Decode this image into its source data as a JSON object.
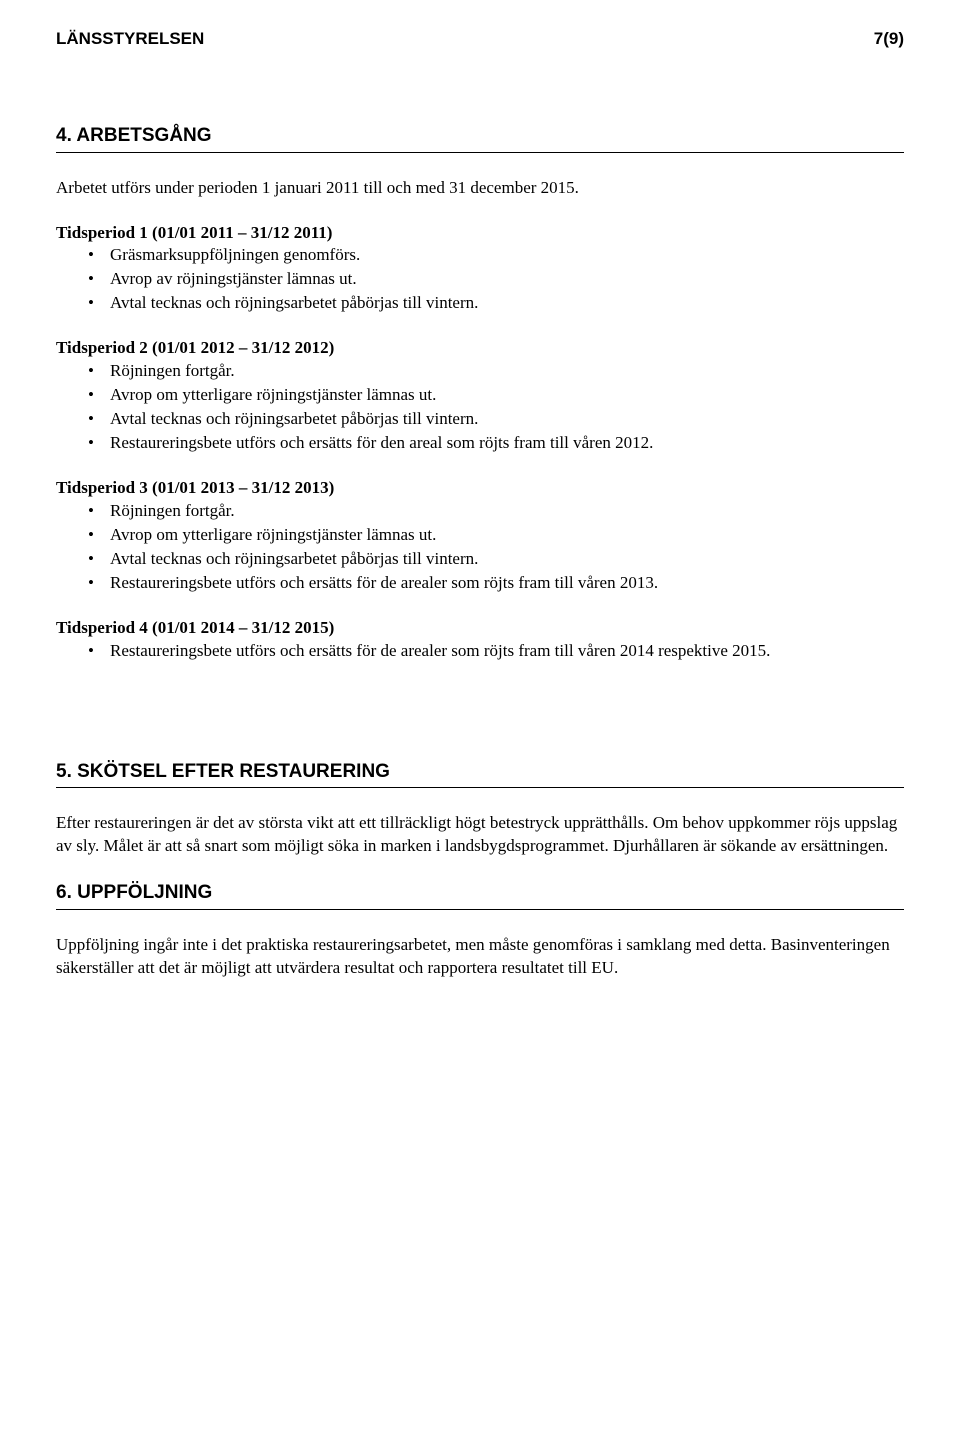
{
  "header": {
    "org": "LÄNSSTYRELSEN",
    "page": "7(9)"
  },
  "section4": {
    "title": "4. ARBETSGÅNG",
    "intro": "Arbetet utförs under perioden 1 januari 2011 till och med 31 december 2015.",
    "period1": {
      "title": "Tidsperiod 1 (01/01 2011 – 31/12 2011)",
      "items": [
        "Gräsmarksuppföljningen genomförs.",
        "Avrop av röjningstjänster lämnas ut.",
        "Avtal tecknas och röjningsarbetet påbörjas till vintern."
      ]
    },
    "period2": {
      "title": "Tidsperiod 2 (01/01 2012 – 31/12 2012)",
      "items": [
        "Röjningen fortgår.",
        "Avrop om ytterligare röjningstjänster lämnas ut.",
        "Avtal tecknas och röjningsarbetet påbörjas till vintern.",
        "Restaureringsbete utförs och ersätts för den areal som röjts fram till våren 2012."
      ]
    },
    "period3": {
      "title": "Tidsperiod 3 (01/01 2013 – 31/12 2013)",
      "items": [
        "Röjningen fortgår.",
        "Avrop om ytterligare röjningstjänster lämnas ut.",
        "Avtal tecknas och röjningsarbetet påbörjas till vintern.",
        "Restaureringsbete utförs och ersätts för de arealer som röjts fram till våren 2013."
      ]
    },
    "period4": {
      "title": "Tidsperiod 4 (01/01 2014 – 31/12 2015)",
      "items": [
        "Restaureringsbete utförs och ersätts för de arealer som röjts fram till våren 2014 respektive 2015."
      ]
    }
  },
  "section5": {
    "title": "5. SKÖTSEL EFTER RESTAURERING",
    "body": "Efter restaureringen är det av största vikt att ett tillräckligt högt betestryck upprätthålls. Om behov uppkommer röjs uppslag av sly. Målet är att så snart som möjligt söka in marken i landsbygdsprogrammet. Djurhållaren är sökande av ersättningen."
  },
  "section6": {
    "title": "6. UPPFÖLJNING",
    "body": "Uppföljning ingår inte i det praktiska restaureringsarbetet, men måste genomföras i samklang med detta. Basinventeringen säkerställer att det är möjligt att utvärdera resultat och rapportera resultatet till EU."
  }
}
